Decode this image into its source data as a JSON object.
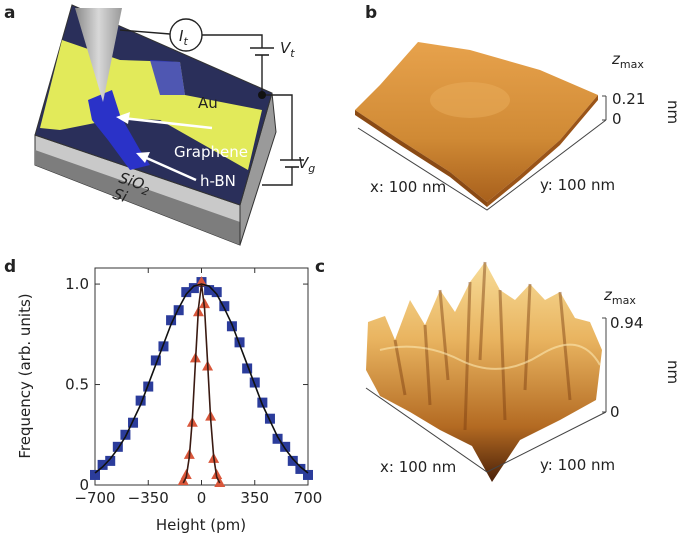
{
  "panel_labels": [
    "a",
    "b",
    "c",
    "d"
  ],
  "schematic": {
    "current": {
      "main": "I",
      "sub": "t"
    },
    "tip_voltage": {
      "main": "V",
      "sub": "t"
    },
    "gate_voltage": {
      "main": "V",
      "sub": "g"
    },
    "gold": "Au",
    "graphene": "Graphene",
    "hbn": "h-BN",
    "oxide": {
      "main": "SiO",
      "sub": "2"
    },
    "substrate": "Si"
  },
  "topography_graphene": {
    "z_label": {
      "main": "z",
      "sub": "max"
    },
    "z_max": "0.21",
    "z_min": "0",
    "unit": "nm",
    "x_range": "x: 100 nm",
    "y_range": "y: 100 nm"
  },
  "topography_sio2": {
    "z_label": {
      "main": "z",
      "sub": "max"
    },
    "z_max": "0.94",
    "z_min": "0",
    "unit": "nm",
    "x_range": "x: 100 nm",
    "y_range": "y: 100 nm"
  },
  "chart_data": {
    "type": "scatter",
    "xlabel": "Height (pm)",
    "ylabel": "Frequency (arb. units)",
    "xlim": [
      -700,
      700
    ],
    "ylim": [
      0,
      1.08
    ],
    "xticks": [
      {
        "value": -700,
        "label": "−700"
      },
      {
        "value": -350,
        "label": "−350"
      },
      0,
      350,
      700
    ],
    "yticks": [
      0,
      0.5,
      {
        "value": 1,
        "label": "1.0"
      }
    ],
    "series": [
      {
        "mode": "markers",
        "marker": "square",
        "color": "#2b3c9b",
        "x": [
          -700,
          -650,
          -600,
          -550,
          -500,
          -450,
          -400,
          -350,
          -300,
          -250,
          -200,
          -150,
          -100,
          -50,
          0,
          50,
          100,
          150,
          200,
          250,
          300,
          350,
          400,
          450,
          500,
          550,
          600,
          650,
          700
        ],
        "values": [
          0.05,
          0.1,
          0.12,
          0.19,
          0.25,
          0.31,
          0.42,
          0.49,
          0.62,
          0.69,
          0.82,
          0.87,
          0.96,
          0.98,
          1.01,
          0.97,
          0.96,
          0.89,
          0.79,
          0.71,
          0.58,
          0.51,
          0.41,
          0.33,
          0.23,
          0.19,
          0.12,
          0.08,
          0.05
        ]
      },
      {
        "mode": "markers",
        "marker": "triangle",
        "color": "#d9573b",
        "x": [
          -120,
          -100,
          -80,
          -60,
          -40,
          -20,
          0,
          20,
          40,
          60,
          80,
          100,
          120
        ],
        "values": [
          0.02,
          0.05,
          0.15,
          0.31,
          0.63,
          0.86,
          1.01,
          0.9,
          0.59,
          0.34,
          0.13,
          0.05,
          0.01
        ]
      },
      {
        "mode": "line",
        "color": "#111111",
        "x": [
          -700,
          -650,
          -600,
          -550,
          -500,
          -450,
          -400,
          -350,
          -300,
          -250,
          -200,
          -150,
          -100,
          -50,
          0,
          50,
          100,
          150,
          200,
          250,
          300,
          350,
          400,
          450,
          500,
          550,
          600,
          650,
          700
        ],
        "values": [
          0.06,
          0.09,
          0.13,
          0.18,
          0.24,
          0.32,
          0.4,
          0.5,
          0.6,
          0.7,
          0.8,
          0.88,
          0.95,
          0.99,
          1.0,
          0.99,
          0.95,
          0.88,
          0.8,
          0.7,
          0.6,
          0.5,
          0.4,
          0.32,
          0.24,
          0.18,
          0.13,
          0.09,
          0.06
        ]
      },
      {
        "mode": "line",
        "color": "#3a1a12",
        "x": [
          -120,
          -100,
          -80,
          -60,
          -40,
          -20,
          0,
          20,
          40,
          60,
          80,
          100,
          120
        ],
        "values": [
          0.01,
          0.04,
          0.14,
          0.33,
          0.61,
          0.88,
          1.0,
          0.88,
          0.61,
          0.33,
          0.14,
          0.04,
          0.01
        ]
      }
    ]
  }
}
